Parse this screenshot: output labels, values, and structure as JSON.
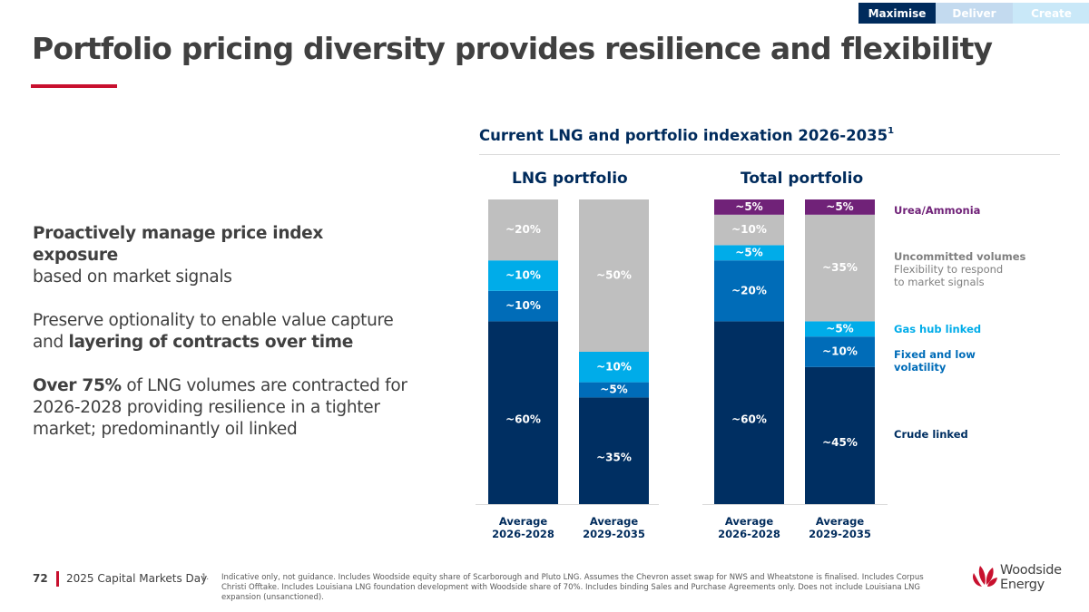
{
  "nav": {
    "tabs": [
      {
        "label": "Maximise",
        "active": true
      },
      {
        "label": "Deliver",
        "active": false
      },
      {
        "label": "Create",
        "active": false
      }
    ]
  },
  "page": {
    "title": "Portfolio pricing diversity provides resilience and flexibility"
  },
  "body": {
    "p1_bold": "Proactively manage price index exposure",
    "p1_rest": "based on market signals",
    "p2_start": "Preserve optionality to enable value capture and ",
    "p2_bold": "layering of contracts over time",
    "p3_bold": "Over 75%",
    "p3_rest": " of LNG volumes are contracted for 2026-2028 providing resilience in a tighter market; predominantly oil linked"
  },
  "colors": {
    "crude": "#002F62",
    "fixed": "#006CB8",
    "gashub": "#00ACE9",
    "uncommitted": "#BFBFBF",
    "urea": "#702278",
    "accent_red": "#C8102E",
    "navy": "#002B5C"
  },
  "chart_data": {
    "type": "bar",
    "stacked": true,
    "title": "Current LNG and portfolio indexation 2026-2035",
    "title_footnote": "1",
    "ylim": [
      0,
      100
    ],
    "grid": false,
    "legend_position": "right",
    "groups": [
      {
        "title": "LNG portfolio",
        "categories": [
          "Average\n2026-2028",
          "Average\n2029-2035"
        ],
        "category_lines": [
          [
            "Average",
            "2026-2028"
          ],
          [
            "Average",
            "2029-2035"
          ]
        ],
        "series": [
          {
            "name": "Crude linked",
            "key": "crude",
            "values": [
              60,
              35
            ],
            "labels": [
              "~60%",
              "~35%"
            ]
          },
          {
            "name": "Fixed and low volatility",
            "key": "fixed",
            "values": [
              10,
              5
            ],
            "labels": [
              "~10%",
              "~5%"
            ]
          },
          {
            "name": "Gas hub linked",
            "key": "gashub",
            "values": [
              10,
              10
            ],
            "labels": [
              "~10%",
              "~10%"
            ]
          },
          {
            "name": "Uncommitted volumes",
            "key": "uncommitted",
            "values": [
              20,
              50
            ],
            "labels": [
              "~20%",
              "~50%"
            ]
          }
        ]
      },
      {
        "title": "Total portfolio",
        "categories": [
          "Average\n2026-2028",
          "Average\n2029-2035"
        ],
        "category_lines": [
          [
            "Average",
            "2026-2028"
          ],
          [
            "Average",
            "2029-2035"
          ]
        ],
        "series": [
          {
            "name": "Crude linked",
            "key": "crude",
            "values": [
              60,
              45
            ],
            "labels": [
              "~60%",
              "~45%"
            ]
          },
          {
            "name": "Fixed and low volatility",
            "key": "fixed",
            "values": [
              20,
              10
            ],
            "labels": [
              "~20%",
              "~10%"
            ]
          },
          {
            "name": "Gas hub linked",
            "key": "gashub",
            "values": [
              5,
              5
            ],
            "labels": [
              "~5%",
              "~5%"
            ]
          },
          {
            "name": "Uncommitted volumes",
            "key": "uncommitted",
            "values": [
              10,
              35
            ],
            "labels": [
              "~10%",
              "~35%"
            ]
          },
          {
            "name": "Urea/Ammonia",
            "key": "urea",
            "values": [
              5,
              5
            ],
            "labels": [
              "~5%",
              "~5%"
            ]
          }
        ]
      }
    ],
    "legend": [
      {
        "key": "urea",
        "name": "Urea/Ammonia",
        "sub": "",
        "color": "#702278"
      },
      {
        "key": "uncommitted",
        "name": "Uncommitted volumes",
        "sub": "Flexibility to respond to market signals",
        "color": "#7F7F7F"
      },
      {
        "key": "gashub",
        "name": "Gas hub linked",
        "sub": "",
        "color": "#00ACE9"
      },
      {
        "key": "fixed",
        "name": "Fixed and low volatility",
        "sub": "",
        "color": "#006CB8"
      },
      {
        "key": "crude",
        "name": "Crude linked",
        "sub": "",
        "color": "#002F62"
      }
    ]
  },
  "footer": {
    "page_number": "72",
    "event": "2025 Capital Markets Day",
    "footnote_number": "1.",
    "footnote_text": "Indicative only, not guidance. Includes Woodside equity share of Scarborough and Pluto LNG. Assumes the Chevron asset swap for NWS and Wheatstone is finalised. Includes Corpus Christi Offtake. Includes Louisiana LNG foundation development with Woodside share of 70%. Includes binding Sales and Purchase Agreements only. Does not include Louisiana LNG expansion (unsanctioned)."
  },
  "logo": {
    "line1": "Woodside",
    "line2": "Energy"
  }
}
